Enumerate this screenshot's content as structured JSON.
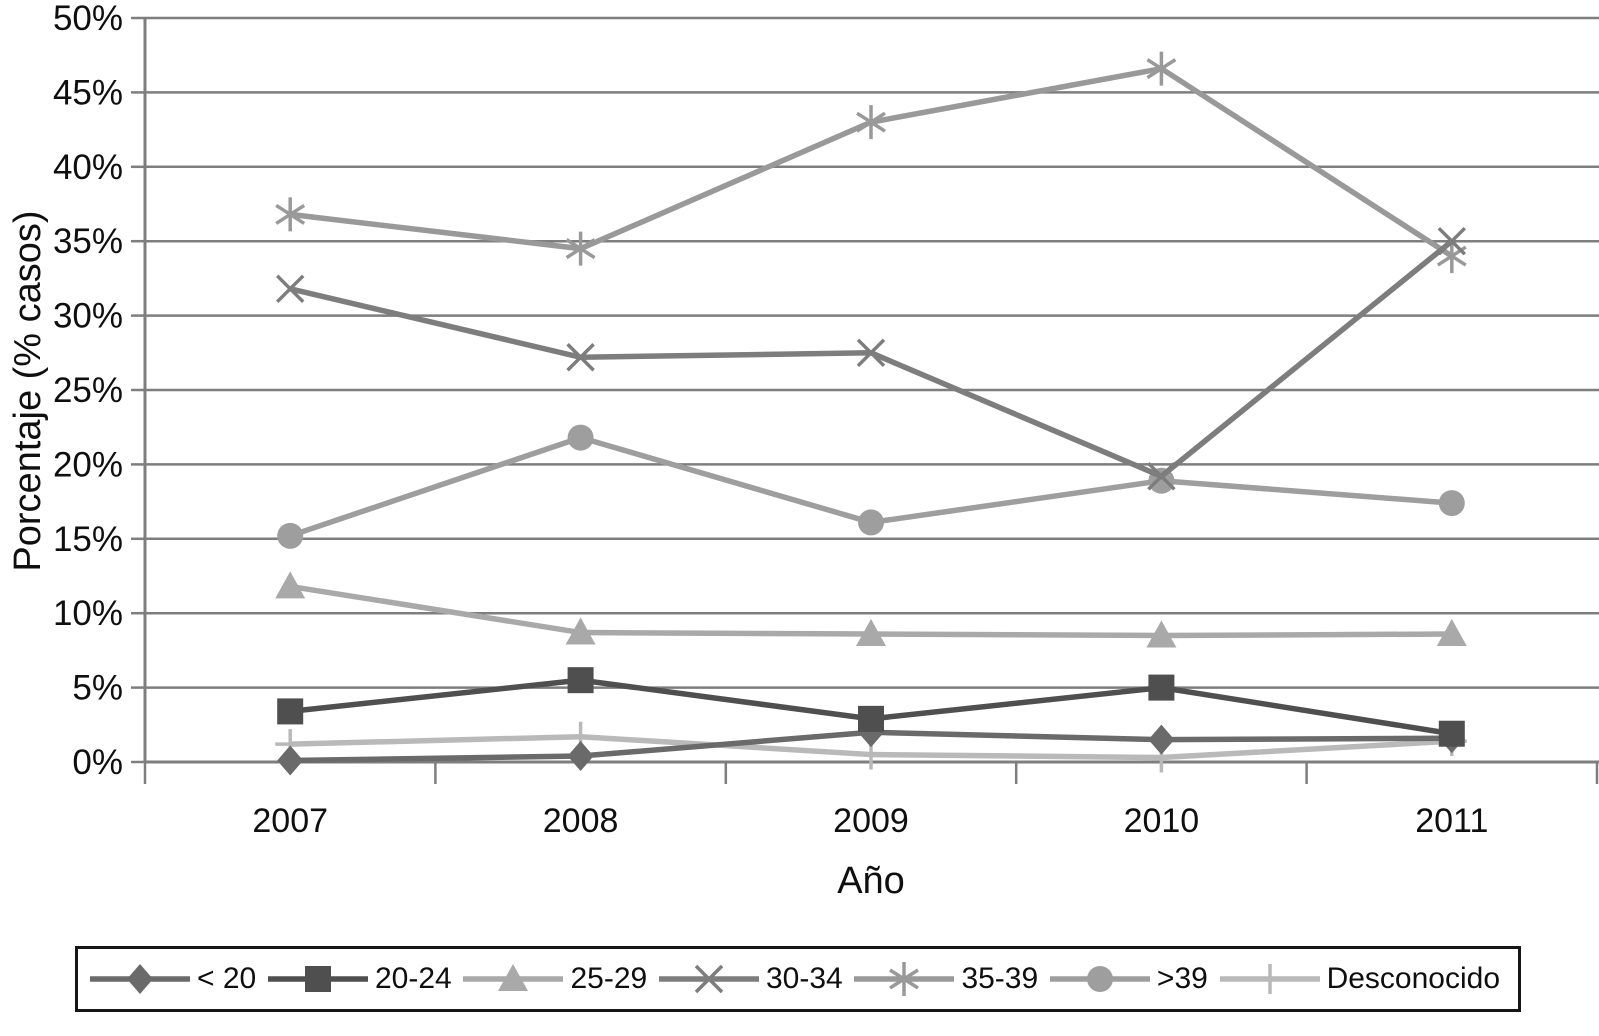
{
  "chart_data": {
    "type": "line",
    "title": "",
    "xlabel": "Año",
    "ylabel": "Porcentaje (% casos)",
    "ylim": [
      0,
      50
    ],
    "ytick_step": 5,
    "ytick_labels": [
      "0%",
      "5%",
      "10%",
      "15%",
      "20%",
      "25%",
      "30%",
      "35%",
      "40%",
      "45%",
      "50%"
    ],
    "categories": [
      "2007",
      "2008",
      "2009",
      "2010",
      "2011"
    ],
    "grid": "horizontal",
    "legend_position": "bottom",
    "series": [
      {
        "name": "< 20",
        "marker": "diamond",
        "color": "#6a6a6a",
        "values": [
          0.1,
          0.4,
          2.0,
          1.5,
          1.6
        ]
      },
      {
        "name": "20-24",
        "marker": "square",
        "color": "#4f4f4f",
        "values": [
          3.4,
          5.5,
          2.9,
          5.0,
          1.9
        ]
      },
      {
        "name": "25-29",
        "marker": "triangle",
        "color": "#a9a9a9",
        "values": [
          11.8,
          8.7,
          8.6,
          8.5,
          8.6
        ]
      },
      {
        "name": "30-34",
        "marker": "x",
        "color": "#7d7d7d",
        "values": [
          31.8,
          27.2,
          27.5,
          19.2,
          35.0
        ]
      },
      {
        "name": "35-39",
        "marker": "asterisk",
        "color": "#999999",
        "values": [
          36.8,
          34.5,
          43.0,
          46.6,
          34.0
        ]
      },
      {
        "name": ">39",
        "marker": "circle",
        "color": "#9e9e9e",
        "values": [
          15.2,
          21.8,
          16.1,
          18.9,
          17.4
        ]
      },
      {
        "name": "Desconocido",
        "marker": "plus",
        "color": "#b9b9b9",
        "values": [
          1.2,
          1.7,
          0.5,
          0.3,
          1.4
        ]
      }
    ]
  }
}
